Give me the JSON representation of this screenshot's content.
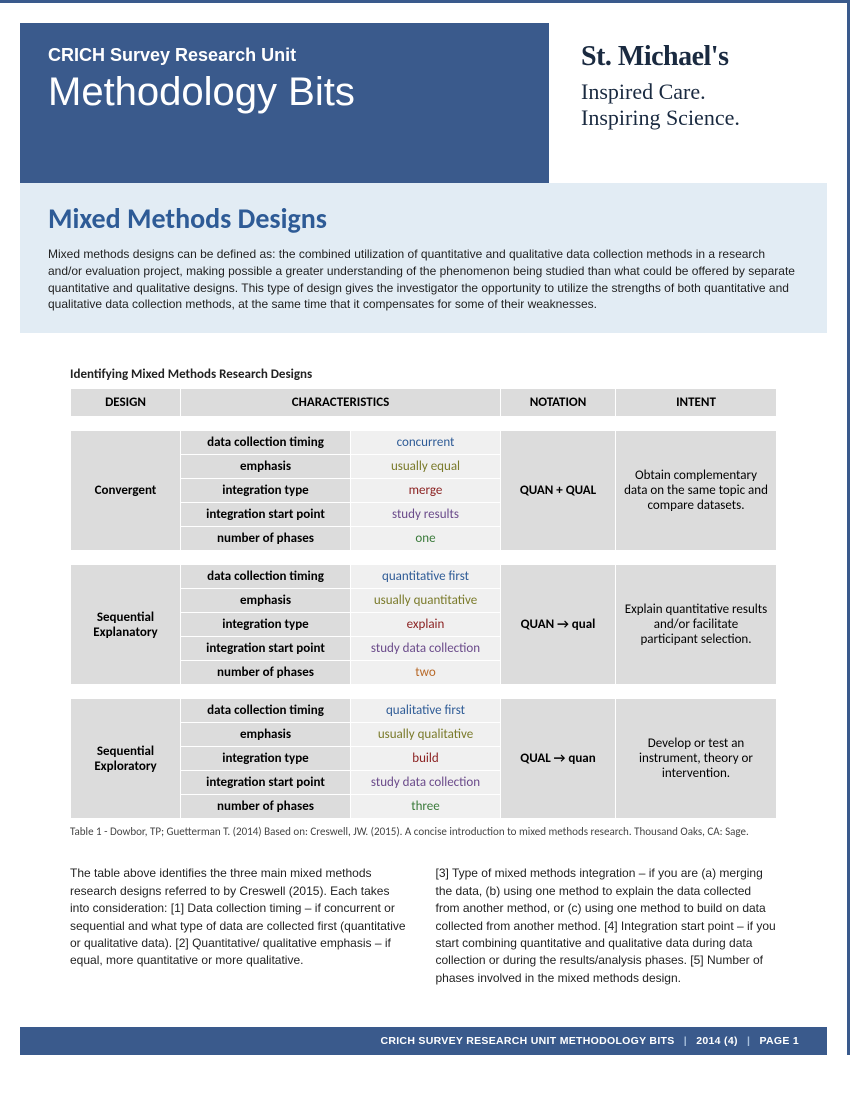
{
  "header": {
    "subtitle": "CRICH Survey Research Unit",
    "title": "Methodology Bits",
    "logo_name": "St. Michael's",
    "logo_tagline1": "Inspired Care.",
    "logo_tagline2": "Inspiring Science."
  },
  "section": {
    "title": "Mixed Methods Designs",
    "description": "Mixed methods designs can be defined as: the combined utilization of quantitative and qualitative data collection methods in a research and/or evaluation project, making possible a greater understanding of the phenomenon being studied than what could be offered by separate quantitative and qualitative designs. This type of design gives the investigator the opportunity to utilize the strengths of both quantitative and qualitative data collection methods, at the same time that it compensates for some of their weaknesses."
  },
  "table": {
    "caption": "Identifying Mixed Methods Research Designs",
    "headers": {
      "design": "DESIGN",
      "characteristics": "CHARACTERISTICS",
      "notation": "NOTATION",
      "intent": "INTENT"
    },
    "char_labels": {
      "timing": "data collection timing",
      "emphasis": "emphasis",
      "integration_type": "integration type",
      "integration_start": "integration start point",
      "phases": "number of phases"
    },
    "designs": [
      {
        "name": "Convergent",
        "timing": "concurrent",
        "timing_color": "c-blue",
        "emphasis": "usually equal",
        "emphasis_color": "c-olive",
        "integration_type": "merge",
        "integration_type_color": "c-red",
        "integration_start": "study results",
        "integration_start_color": "c-purple",
        "phases": "one",
        "phases_color": "c-green",
        "notation": "QUAN + QUAL",
        "intent": "Obtain complementary data on the same topic and compare datasets."
      },
      {
        "name": "Sequential Explanatory",
        "timing": "quantitative first",
        "timing_color": "c-blue",
        "emphasis": "usually quantitative",
        "emphasis_color": "c-olive",
        "integration_type": "explain",
        "integration_type_color": "c-red",
        "integration_start": "study data collection",
        "integration_start_color": "c-purple",
        "phases": "two",
        "phases_color": "c-orange",
        "notation": "QUAN → qual",
        "intent": "Explain quantitative results and/or facilitate participant selection."
      },
      {
        "name": "Sequential Exploratory",
        "timing": "qualitative first",
        "timing_color": "c-blue",
        "emphasis": "usually qualitative",
        "emphasis_color": "c-olive",
        "integration_type": "build",
        "integration_type_color": "c-red",
        "integration_start": "study data collection",
        "integration_start_color": "c-purple",
        "phases": "three",
        "phases_color": "c-green",
        "notation": "QUAL → quan",
        "intent": "Develop or test an instrument, theory or intervention."
      }
    ],
    "source": "Table 1 - Dowbor, TP; Guetterman T. (2014) Based on: Creswell, JW. (2015). A concise introduction to mixed methods research. Thousand Oaks, CA: Sage."
  },
  "body": {
    "col1": "The table above identifies the three main mixed methods research designs referred to by Creswell (2015). Each takes into consideration: [1] Data collection timing – if concurrent or sequential and what type of data are collected first (quantitative or qualitative data). [2] Quantitative/ qualitative emphasis – if equal, more quantitative or more qualitative.",
    "col2": "[3] Type of mixed methods integration – if you are (a) merging the data, (b) using one method to explain the data collected from another method, or (c) using one method to build on data collected from another method. [4] Integration start point – if you start combining quantitative and qualitative data during data collection or during the results/analysis phases. [5] Number of phases involved in the mixed methods design."
  },
  "footer": {
    "text": "CRICH SURVEY RESEARCH UNIT METHODOLOGY BITS",
    "issue": "2014 (4)",
    "page": "PAGE 1"
  }
}
